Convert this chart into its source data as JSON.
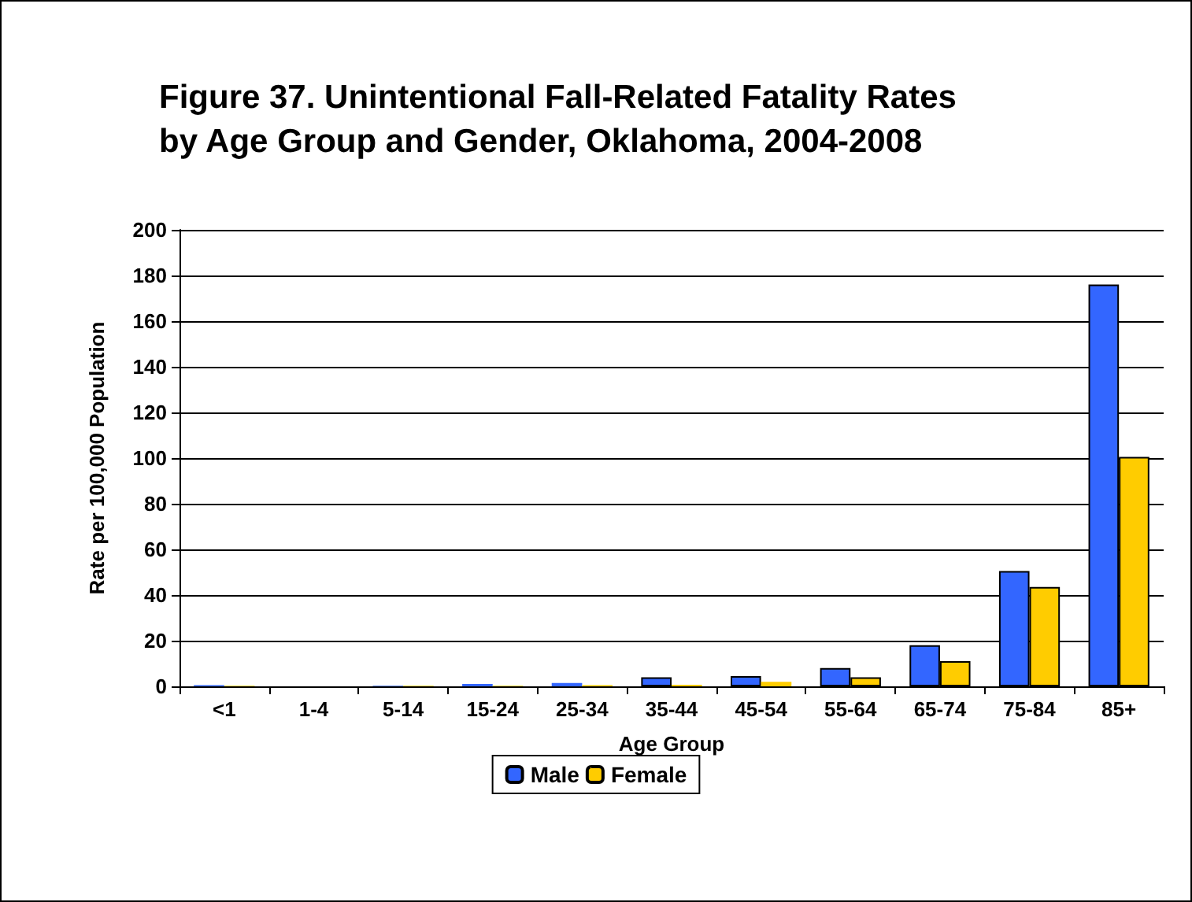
{
  "chart_data": {
    "type": "bar",
    "title": "Figure 37. Unintentional Fall-Related Fatality Rates\nby Age Group and Gender, Oklahoma, 2004-2008",
    "xlabel": "Age Group",
    "ylabel": "Rate per 100,000 Population",
    "categories": [
      "<1",
      "1-4",
      "5-14",
      "15-24",
      "25-34",
      "35-44",
      "45-54",
      "55-64",
      "65-74",
      "75-84",
      "85+"
    ],
    "series": [
      {
        "name": "Male",
        "color": "#3366ff",
        "values": [
          0.5,
          0,
          0.3,
          1,
          1.5,
          4,
          4.5,
          8,
          18,
          50.5,
          176
        ]
      },
      {
        "name": "Female",
        "color": "#ffcc00",
        "values": [
          0.3,
          0,
          0.3,
          0.3,
          0.5,
          0.7,
          2,
          4,
          11,
          43.5,
          100.5
        ]
      }
    ],
    "ylim": [
      0,
      200
    ],
    "yticks": [
      0,
      20,
      40,
      60,
      80,
      100,
      120,
      140,
      160,
      180,
      200
    ],
    "grid": "y",
    "legend": "bottom"
  }
}
